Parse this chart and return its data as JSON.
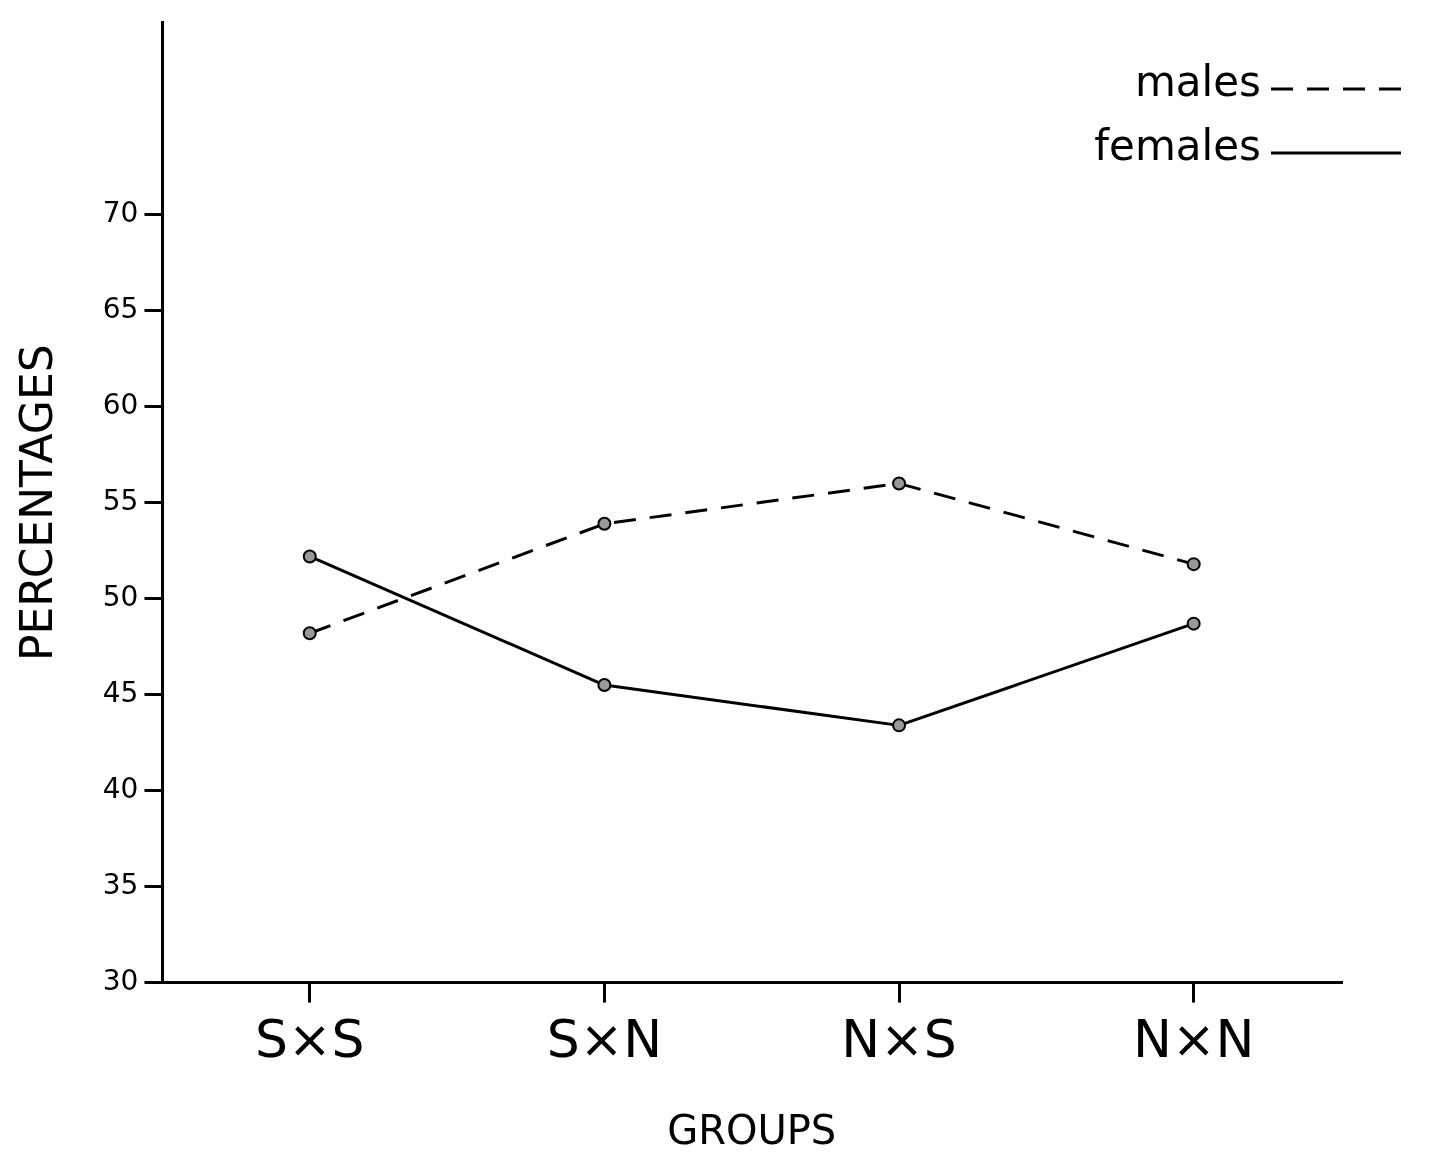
{
  "chart_data": {
    "type": "line",
    "xlabel": "GROUPS",
    "ylabel": "PERCENTAGES",
    "categories": [
      "S×S",
      "S×N",
      "N×S",
      "N×N"
    ],
    "series": [
      {
        "name": "males",
        "color": "#000000",
        "line_style": "dashed",
        "values": [
          48.2,
          53.9,
          56.0,
          51.8
        ]
      },
      {
        "name": "females",
        "color": "#000000",
        "line_style": "solid",
        "values": [
          52.2,
          45.5,
          43.4,
          48.7
        ]
      }
    ],
    "ylim": [
      30,
      80
    ],
    "yticks": [
      30,
      35,
      40,
      45,
      50,
      55,
      60,
      65,
      70
    ],
    "grid": false,
    "legend": "top right",
    "marker": "circle"
  }
}
